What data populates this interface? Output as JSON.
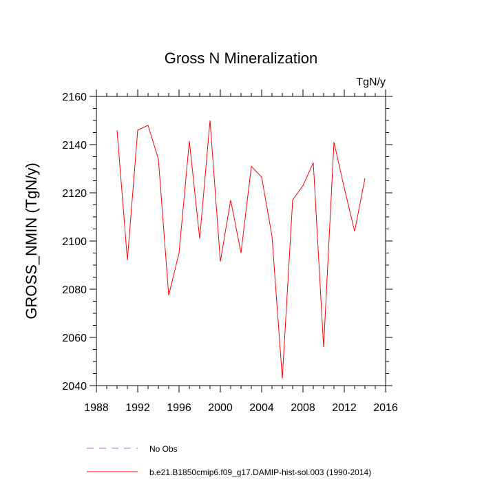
{
  "chart_data": {
    "type": "line",
    "title": "Gross N Mineralization",
    "units": "TgN/y",
    "xlabel": "",
    "ylabel": "GROSS_NMIN  (TgN/y)",
    "xlim": [
      1988,
      2016
    ],
    "ylim": [
      2040,
      2160
    ],
    "xticks": [
      1988,
      1992,
      1996,
      2000,
      2004,
      2008,
      2012,
      2016
    ],
    "yticks": [
      2040,
      2060,
      2080,
      2100,
      2120,
      2140,
      2160
    ],
    "grid": false,
    "series": [
      {
        "name": "b.e21.B1850cmip6.f09_g17.DAMIP-hist-sol.003 (1990-2014)",
        "color": "#ff0000",
        "x": [
          1990,
          1991,
          1992,
          1993,
          1994,
          1995,
          1996,
          1997,
          1998,
          1999,
          2000,
          2001,
          2002,
          2003,
          2004,
          2005,
          2006,
          2007,
          2008,
          2009,
          2010,
          2011,
          2012,
          2013,
          2014
        ],
        "y": [
          2146,
          2092,
          2146,
          2148,
          2134,
          2077.5,
          2095,
          2141.5,
          2101,
          2150,
          2091.5,
          2117,
          2095,
          2131,
          2126.5,
          2102,
          2043,
          2117,
          2123,
          2132.5,
          2056,
          2141,
          2122,
          2104,
          2126
        ]
      }
    ],
    "legend": [
      {
        "label": "No Obs",
        "style": "dashed",
        "color": "#8080ff"
      },
      {
        "label": "b.e21.B1850cmip6.f09_g17.DAMIP-hist-sol.003 (1990-2014)",
        "style": "solid",
        "color": "#ff0000"
      }
    ],
    "legend_position": "bottom-left"
  }
}
